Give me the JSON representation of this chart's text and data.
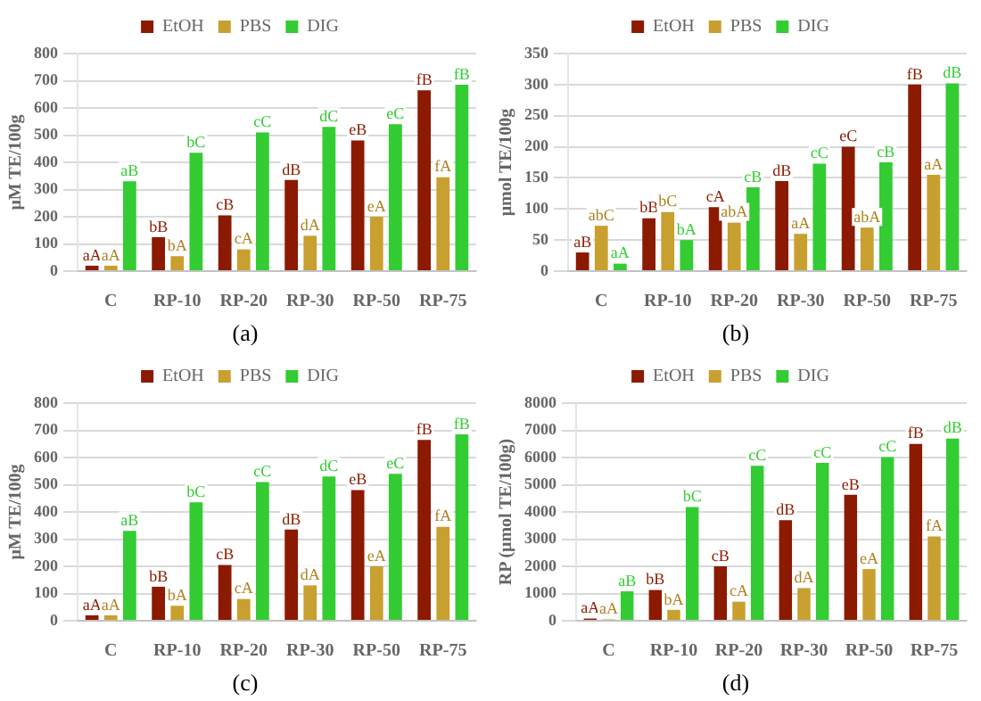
{
  "chart_data": [
    {
      "type": "bar",
      "ylabel": "μM TE/100g",
      "categories": [
        "C",
        "RP-10",
        "RP-20",
        "RP-30",
        "RP-50",
        "RP-75"
      ],
      "ylim": [
        0,
        800
      ],
      "yticks": [
        0,
        100,
        200,
        300,
        400,
        500,
        600,
        700,
        800
      ],
      "grid": "y",
      "legend": "top",
      "annotations": [
        "(a)"
      ],
      "series": [
        {
          "name": "EtOH",
          "color": "#8b1a00",
          "values": [
            20,
            125,
            205,
            335,
            480,
            665
          ],
          "value_labels": [
            "aA",
            "bB",
            "cB",
            "dB",
            "eB",
            "fB"
          ]
        },
        {
          "name": "PBS",
          "color": "#c8a030",
          "values": [
            20,
            55,
            80,
            130,
            200,
            345
          ],
          "value_labels": [
            "aA",
            "bA",
            "cA",
            "dA",
            "eA",
            "fA"
          ]
        },
        {
          "name": "DIG",
          "color": "#33cc33",
          "values": [
            330,
            435,
            510,
            530,
            540,
            685
          ],
          "value_labels": [
            "aB",
            "bC",
            "cC",
            "dC",
            "eC",
            "fB"
          ]
        }
      ]
    },
    {
      "type": "bar",
      "ylabel": "μmol TE/100g",
      "categories": [
        "C",
        "RP-10",
        "RP-20",
        "RP-30",
        "RP-50",
        "RP-75"
      ],
      "ylim": [
        0,
        350
      ],
      "yticks": [
        0,
        50,
        100,
        150,
        200,
        250,
        300,
        350
      ],
      "grid": "y",
      "legend": "top",
      "annotations": [
        "(b)"
      ],
      "series": [
        {
          "name": "EtOH",
          "color": "#8b1a00",
          "values": [
            30,
            85,
            103,
            145,
            200,
            300
          ],
          "value_labels": [
            "aB",
            "bB",
            "cA",
            "dB",
            "eC",
            "fB"
          ]
        },
        {
          "name": "PBS",
          "color": "#c8a030",
          "values": [
            73,
            95,
            78,
            60,
            70,
            155
          ],
          "value_labels": [
            "abC",
            "bC",
            "abA",
            "aA",
            "abA",
            "aA"
          ]
        },
        {
          "name": "DIG",
          "color": "#33cc33",
          "values": [
            12,
            50,
            135,
            173,
            175,
            302
          ],
          "value_labels": [
            "aA",
            "bA",
            "cB",
            "cC",
            "cB",
            "dB"
          ]
        }
      ]
    },
    {
      "type": "bar",
      "ylabel": "μM TE/100g",
      "categories": [
        "C",
        "RP-10",
        "RP-20",
        "RP-30",
        "RP-50",
        "RP-75"
      ],
      "ylim": [
        0,
        800
      ],
      "yticks": [
        0,
        100,
        200,
        300,
        400,
        500,
        600,
        700,
        800
      ],
      "grid": "y",
      "legend": "top",
      "annotations": [
        "(c)"
      ],
      "series": [
        {
          "name": "EtOH",
          "color": "#8b1a00",
          "values": [
            20,
            125,
            205,
            335,
            480,
            665
          ],
          "value_labels": [
            "aA",
            "bB",
            "cB",
            "dB",
            "eB",
            "fB"
          ]
        },
        {
          "name": "PBS",
          "color": "#c8a030",
          "values": [
            20,
            55,
            80,
            130,
            200,
            345
          ],
          "value_labels": [
            "aA",
            "bA",
            "cA",
            "dA",
            "eA",
            "fA"
          ]
        },
        {
          "name": "DIG",
          "color": "#33cc33",
          "values": [
            330,
            435,
            510,
            530,
            540,
            685
          ],
          "value_labels": [
            "aB",
            "bC",
            "cC",
            "dC",
            "eC",
            "fB"
          ]
        }
      ]
    },
    {
      "type": "bar",
      "ylabel": "RP (μmol TE/100g)",
      "categories": [
        "C",
        "RP-10",
        "RP-20",
        "RP-30",
        "RP-50",
        "RP-75"
      ],
      "ylim": [
        0,
        8000
      ],
      "yticks": [
        0,
        1000,
        2000,
        3000,
        4000,
        5000,
        6000,
        7000,
        8000
      ],
      "grid": "y",
      "legend": "top",
      "annotations": [
        "(d)"
      ],
      "series": [
        {
          "name": "EtOH",
          "color": "#8b1a00",
          "values": [
            80,
            1130,
            2000,
            3700,
            4630,
            6500
          ],
          "value_labels": [
            "aA",
            "bB",
            "cB",
            "dB",
            "eB",
            "fB"
          ]
        },
        {
          "name": "PBS",
          "color": "#c8a030",
          "values": [
            50,
            400,
            700,
            1200,
            1900,
            3100
          ],
          "value_labels": [
            "aA",
            "bA",
            "cA",
            "dA",
            "eA",
            "fA"
          ]
        },
        {
          "name": "DIG",
          "color": "#33cc33",
          "values": [
            1080,
            4180,
            5700,
            5800,
            6020,
            6700
          ],
          "value_labels": [
            "aB",
            "bC",
            "cC",
            "cC",
            "cC",
            "dB"
          ]
        }
      ]
    }
  ]
}
